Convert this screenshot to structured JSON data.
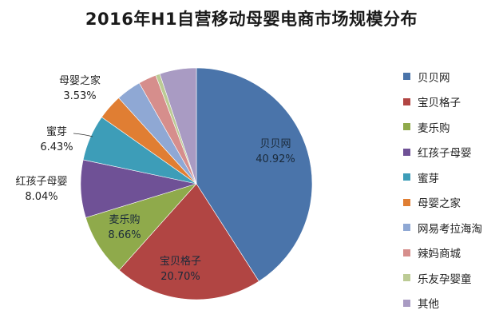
{
  "chart_data": {
    "type": "pie",
    "title": "2016年H1自营移动母婴电商市场规模分布",
    "categories": [
      "贝贝网",
      "宝贝格子",
      "麦乐购",
      "红孩子母婴",
      "蜜芽",
      "母婴之家",
      "网易考拉海淘",
      "辣妈商城",
      "乐友孕婴童",
      "其他"
    ],
    "values": [
      40.92,
      20.7,
      8.66,
      8.04,
      6.43,
      3.53,
      3.5,
      2.5,
      0.6,
      5.12
    ],
    "colors": [
      "#4A74AA",
      "#B14543",
      "#8FAA4B",
      "#6F5196",
      "#3D9DB8",
      "#E07E33",
      "#8FA8D4",
      "#D68E8C",
      "#BCCB95",
      "#A99BC3"
    ],
    "data_labels": [
      {
        "name": "贝贝网",
        "value": "40.92%"
      },
      {
        "name": "宝贝格子",
        "value": "20.70%"
      },
      {
        "name": "麦乐购",
        "value": "8.66%"
      },
      {
        "name": "红孩子母婴",
        "value": "8.04%"
      },
      {
        "name": "蜜芽",
        "value": "6.43%"
      },
      {
        "name": "母婴之家",
        "value": "3.53%"
      }
    ],
    "legend_position": "right",
    "start_angle": "12 o'clock, clockwise"
  },
  "title": "2016年H1自营移动母婴电商市场规模分布",
  "legend": [
    {
      "label": "贝贝网",
      "color": "#4A74AA"
    },
    {
      "label": "宝贝格子",
      "color": "#B14543"
    },
    {
      "label": "麦乐购",
      "color": "#8FAA4B"
    },
    {
      "label": "红孩子母婴",
      "color": "#6F5196"
    },
    {
      "label": "蜜芽",
      "color": "#3D9DB8"
    },
    {
      "label": "母婴之家",
      "color": "#E07E33"
    },
    {
      "label": "网易考拉海淘",
      "color": "#8FA8D4"
    },
    {
      "label": "辣妈商城",
      "color": "#D68E8C"
    },
    {
      "label": "乐友孕婴童",
      "color": "#BCCB95"
    },
    {
      "label": "其他",
      "color": "#A99BC3"
    }
  ],
  "labels": {
    "beibei": {
      "name": "贝贝网",
      "pct": "40.92%"
    },
    "baobei": {
      "name": "宝贝格子",
      "pct": "20.70%"
    },
    "mailegou": {
      "name": "麦乐购",
      "pct": "8.66%"
    },
    "honghaizi": {
      "name": "红孩子母婴",
      "pct": "8.04%"
    },
    "miya": {
      "name": "蜜芽",
      "pct": "6.43%"
    },
    "muyingzhijia": {
      "name": "母婴之家",
      "pct": "3.53%"
    }
  }
}
